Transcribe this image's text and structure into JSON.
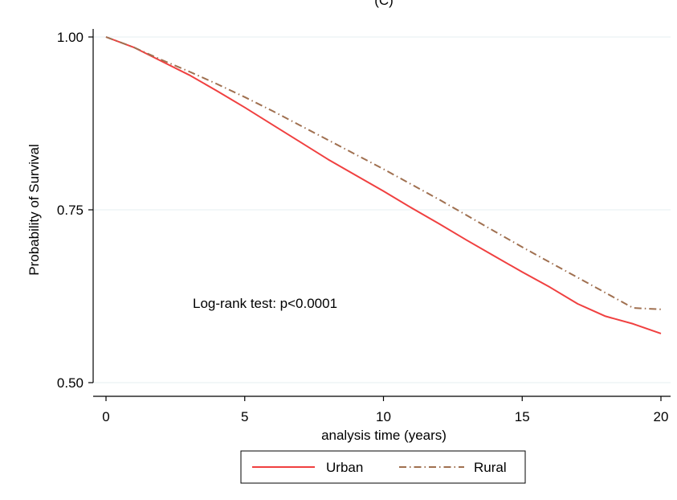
{
  "panel_label": "(C)",
  "chart_data": {
    "type": "line",
    "xlabel": "analysis time (years)",
    "ylabel": "Probability of Survival",
    "xlim": [
      0,
      20
    ],
    "ylim": [
      0.5,
      1.0
    ],
    "xticks": [
      0,
      5,
      10,
      15,
      20
    ],
    "xtick_labels": [
      "0",
      "5",
      "10",
      "15",
      "20"
    ],
    "yticks": [
      0.5,
      0.75,
      1.0
    ],
    "ytick_labels": [
      "0.50",
      "0.75",
      "1.00"
    ],
    "grid": "horizontal",
    "annotation": "Log-rank test: p<0.0001",
    "legend_position": "bottom",
    "series": [
      {
        "name": "Urban",
        "color": "#f04040",
        "style": "solid",
        "x": [
          0,
          1,
          2,
          3,
          4,
          5,
          6,
          7,
          8,
          9,
          10,
          11,
          12,
          13,
          14,
          15,
          16,
          17,
          18,
          19,
          20
        ],
        "y": [
          1.0,
          0.985,
          0.965,
          0.945,
          0.922,
          0.898,
          0.873,
          0.848,
          0.823,
          0.8,
          0.777,
          0.753,
          0.73,
          0.706,
          0.683,
          0.66,
          0.638,
          0.614,
          0.596,
          0.585,
          0.571
        ]
      },
      {
        "name": "Rural",
        "color": "#a07050",
        "style": "dash-dot",
        "x": [
          0,
          1,
          2,
          3,
          4,
          5,
          6,
          7,
          8,
          9,
          10,
          11,
          12,
          13,
          14,
          15,
          16,
          17,
          18,
          19,
          20
        ],
        "y": [
          1.0,
          0.985,
          0.967,
          0.95,
          0.932,
          0.913,
          0.893,
          0.872,
          0.851,
          0.83,
          0.809,
          0.787,
          0.765,
          0.742,
          0.719,
          0.696,
          0.674,
          0.652,
          0.63,
          0.608,
          0.606
        ]
      }
    ]
  }
}
